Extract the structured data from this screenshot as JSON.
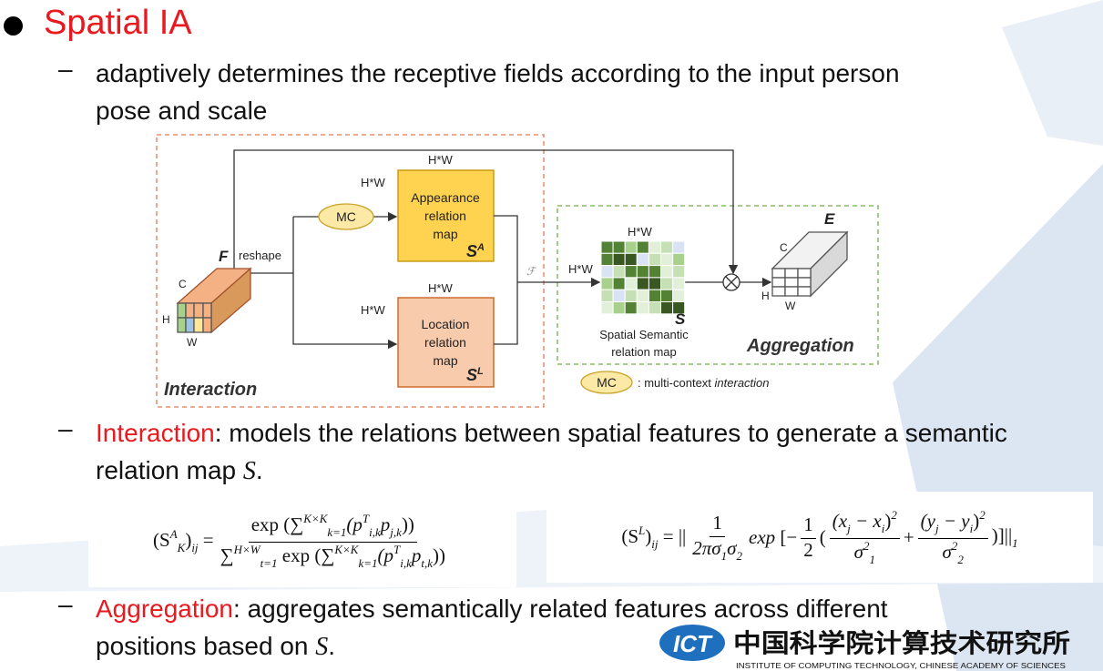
{
  "title": "Spatial IA",
  "bullets": [
    {
      "text": "adaptively determines the receptive fields according to the input person pose and scale"
    },
    {
      "term": "Interaction",
      "text": ": models the relations between spatial features to generate a semantic relation map ",
      "math": "S",
      "end": "."
    },
    {
      "term": "Aggregation",
      "text": ": aggregates semantically related features across different positions based on ",
      "math": "S",
      "end": "."
    }
  ],
  "diagram": {
    "f": "F",
    "f_c": "C",
    "f_h": "H",
    "f_w": "W",
    "reshape": "reshape",
    "hw_a_top": "H*W",
    "hw_a_left": "H*W",
    "mc": "MC",
    "appearance": [
      "Appearance",
      "relation",
      "map"
    ],
    "sa": "S",
    "sa_sup": "A",
    "hw_l_top": "H*W",
    "hw_l_left": "H*W",
    "location": [
      "Location",
      "relation",
      "map"
    ],
    "sl": "S",
    "sl_sup": "L",
    "fuse": "ℱ",
    "hw_s_left": "H*W",
    "hw_s_top": "H*W",
    "s": "S",
    "semantic": [
      "Spatial Semantic",
      "relation map"
    ],
    "e": "E",
    "e_c": "C",
    "e_h": "H",
    "e_w": "W",
    "interaction": "Interaction",
    "aggregation": "Aggregation",
    "legend_mc": "MC",
    "legend_text": ": multi-context ",
    "legend_italic": "interaction"
  },
  "formulas": [
    {
      "items": [
        {
          "run": [
            {
              "t": "(S",
              "s": "up"
            },
            {
              "t": "A",
              "s": "sup"
            },
            {
              "t": "K",
              "s": "sub"
            },
            {
              "t": ")",
              "s": "up"
            },
            {
              "t": "ij",
              "s": "sub"
            },
            {
              "t": " =",
              "s": "up"
            }
          ]
        },
        {
          "num": [
            {
              "t": "exp",
              "s": "up"
            },
            {
              "t": " (∑",
              "s": "up"
            },
            {
              "t": "K×K",
              "s": "sup"
            },
            {
              "t": "k=1",
              "s": "sub"
            },
            {
              "t": "(p"
            },
            {
              "t": "T",
              "s": "sup"
            },
            {
              "t": "i,k",
              "s": "sub"
            },
            {
              "t": "p"
            },
            {
              "t": "j,k",
              "s": "sub"
            },
            {
              "t": "))",
              "s": "up"
            }
          ],
          "den": [
            {
              "t": "∑",
              "s": "up"
            },
            {
              "t": "H×W",
              "s": "sup"
            },
            {
              "t": "t=1",
              "s": "sub"
            },
            {
              "t": " exp (∑",
              "s": "up"
            },
            {
              "t": "K×K",
              "s": "sup"
            },
            {
              "t": "k=1",
              "s": "sub"
            },
            {
              "t": "(p"
            },
            {
              "t": "T",
              "s": "sup"
            },
            {
              "t": "i,k",
              "s": "sub"
            },
            {
              "t": "p"
            },
            {
              "t": "t,k",
              "s": "sub"
            },
            {
              "t": "))",
              "s": "up"
            }
          ]
        }
      ]
    },
    {
      "items": [
        {
          "run": [
            {
              "t": "(S",
              "s": "up"
            },
            {
              "t": "L",
              "s": "sup"
            },
            {
              "t": ")",
              "s": "up"
            },
            {
              "t": "ij",
              "s": "sub"
            },
            {
              "t": " = ||",
              "s": "up"
            }
          ]
        },
        {
          "num": [
            {
              "t": "1",
              "s": "up"
            }
          ],
          "den": [
            {
              "t": "2πσ"
            },
            {
              "t": "1",
              "s": "sub"
            },
            {
              "t": "σ"
            },
            {
              "t": "2",
              "s": "sub"
            }
          ]
        },
        {
          "run": [
            {
              "t": "exp"
            },
            {
              "t": " [−",
              "s": "up"
            }
          ]
        },
        {
          "num": [
            {
              "t": "1",
              "s": "up"
            }
          ],
          "den": [
            {
              "t": "2",
              "s": "up"
            }
          ]
        },
        {
          "run": [
            {
              "t": "(",
              "s": "up"
            }
          ]
        },
        {
          "num": [
            {
              "t": "(x"
            },
            {
              "t": "j",
              "s": "sub"
            },
            {
              "t": " − x"
            },
            {
              "t": "i",
              "s": "sub"
            },
            {
              "t": ")",
              "s": "up"
            },
            {
              "t": "2",
              "s": "sup"
            }
          ],
          "den": [
            {
              "t": "σ"
            },
            {
              "t": "2",
              "s": "sup"
            },
            {
              "t": "1",
              "s": "sub"
            }
          ]
        },
        {
          "run": [
            {
              "t": "+",
              "s": "up"
            }
          ]
        },
        {
          "num": [
            {
              "t": "(y"
            },
            {
              "t": "j",
              "s": "sub"
            },
            {
              "t": " − y"
            },
            {
              "t": "i",
              "s": "sub"
            },
            {
              "t": ")",
              "s": "up"
            },
            {
              "t": "2",
              "s": "sup"
            }
          ],
          "den": [
            {
              "t": "σ"
            },
            {
              "t": "2",
              "s": "sup"
            },
            {
              "t": "2",
              "s": "sub"
            }
          ]
        },
        {
          "run": [
            {
              "t": ")]||",
              "s": "up"
            },
            {
              "t": "1",
              "s": "sub"
            }
          ]
        }
      ]
    }
  ],
  "logo": {
    "mark": "ICT",
    "name": "中国科学院计算技术研究所",
    "english": "INSTITUTE OF COMPUTING TECHNOLOGY, CHINESE ACADEMY OF SCIENCES"
  }
}
